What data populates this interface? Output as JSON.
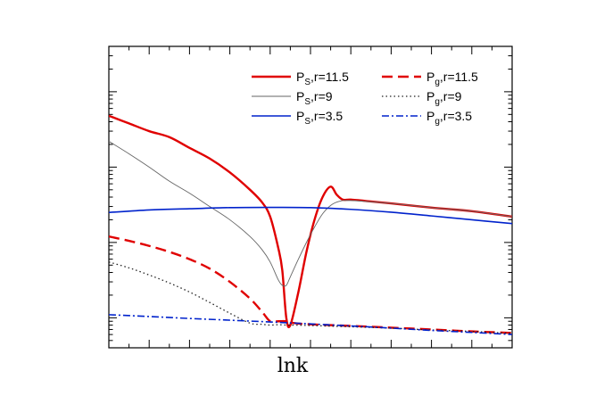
{
  "chart_data": {
    "type": "line",
    "title": "",
    "xlabel": "lnk",
    "ylabel": "",
    "xlim": [
      0,
      10
    ],
    "ylog": true,
    "ylim": [
      0.0004,
      4
    ],
    "grid": false,
    "legend_position": "top-right",
    "series": [
      {
        "name": "P_S, r=11.5",
        "legend_main": "P",
        "legend_sub": "S",
        "legend_rest": ",r=11.5",
        "color": "#e00000",
        "dash": "solid",
        "width": 2.4,
        "x": [
          0,
          0.5,
          1,
          1.5,
          2,
          2.5,
          3,
          3.5,
          3.8,
          4.0,
          4.2,
          4.3,
          4.4,
          4.5,
          4.7,
          4.9,
          5.1,
          5.3,
          5.5,
          5.65,
          5.8,
          6.0,
          6.5,
          7,
          8,
          9,
          10
        ],
        "y": [
          0.48,
          0.38,
          0.3,
          0.25,
          0.18,
          0.13,
          0.085,
          0.05,
          0.034,
          0.022,
          0.0085,
          0.0043,
          0.001,
          0.0008,
          0.0022,
          0.0075,
          0.02,
          0.04,
          0.055,
          0.043,
          0.037,
          0.037,
          0.035,
          0.033,
          0.029,
          0.026,
          0.022
        ]
      },
      {
        "name": "P_S, r=9",
        "legend_main": "P",
        "legend_sub": "S",
        "legend_rest": ",r=9",
        "color": "#666666",
        "dash": "solid",
        "width": 0.9,
        "x": [
          0,
          0.5,
          1,
          1.5,
          2,
          2.5,
          3,
          3.5,
          3.8,
          4.0,
          4.2,
          4.3,
          4.4,
          4.5,
          4.7,
          4.9,
          5.1,
          5.3,
          5.5,
          5.7,
          6,
          7,
          8,
          9,
          10
        ],
        "y": [
          0.22,
          0.15,
          0.1,
          0.065,
          0.045,
          0.03,
          0.02,
          0.012,
          0.008,
          0.0055,
          0.0032,
          0.0027,
          0.0027,
          0.0035,
          0.006,
          0.01,
          0.016,
          0.024,
          0.031,
          0.035,
          0.036,
          0.033,
          0.029,
          0.026,
          0.022
        ]
      },
      {
        "name": "P_S, r=3.5",
        "legend_main": "P",
        "legend_sub": "S",
        "legend_rest": ",r=3.5",
        "color": "#0022cc",
        "dash": "solid",
        "width": 1.6,
        "x": [
          0,
          1,
          2,
          3,
          4,
          5,
          6,
          7,
          8,
          9,
          10
        ],
        "y": [
          0.025,
          0.027,
          0.028,
          0.029,
          0.0292,
          0.029,
          0.0275,
          0.0252,
          0.0225,
          0.02,
          0.0178
        ]
      },
      {
        "name": "P_g, r=11.5",
        "legend_main": "P",
        "legend_sub": "g",
        "legend_rest": ",r=11.5",
        "color": "#e00000",
        "dash": "dashed",
        "width": 2.4,
        "x": [
          0,
          0.5,
          1,
          1.5,
          2,
          2.5,
          3,
          3.5,
          3.8,
          4.0,
          4.2,
          4.4,
          4.6,
          5,
          6,
          7,
          8,
          9,
          10
        ],
        "y": [
          0.012,
          0.0105,
          0.009,
          0.0075,
          0.006,
          0.0045,
          0.003,
          0.0018,
          0.0012,
          0.0009,
          0.0009,
          0.0009,
          0.00085,
          0.00082,
          0.00078,
          0.00074,
          0.0007,
          0.00066,
          0.00063
        ]
      },
      {
        "name": "P_g, r=9",
        "legend_main": "P",
        "legend_sub": "g",
        "legend_rest": ",r=9",
        "color": "#222222",
        "dash": "dotted",
        "width": 1.3,
        "x": [
          0,
          0.5,
          1,
          1.5,
          2,
          2.5,
          3,
          3.5,
          3.8,
          4.0,
          4.2,
          4.4,
          4.6,
          5,
          6,
          7,
          8,
          9,
          10
        ],
        "y": [
          0.0055,
          0.0046,
          0.0037,
          0.0029,
          0.0022,
          0.0016,
          0.00115,
          0.00085,
          0.00082,
          0.0008,
          0.00081,
          0.0008,
          0.0008,
          0.00079,
          0.00076,
          0.00073,
          0.00069,
          0.00066,
          0.00062
        ]
      },
      {
        "name": "P_g, r=3.5",
        "legend_main": "P",
        "legend_sub": "g",
        "legend_rest": ",r=3.5",
        "color": "#0022cc",
        "dash": "dashdot",
        "width": 1.6,
        "x": [
          0,
          1,
          2,
          3,
          4,
          5,
          6,
          7,
          8,
          9,
          10
        ],
        "y": [
          0.0011,
          0.00104,
          0.00098,
          0.00093,
          0.00088,
          0.00083,
          0.00078,
          0.00073,
          0.00068,
          0.00064,
          0.0006
        ]
      }
    ]
  }
}
